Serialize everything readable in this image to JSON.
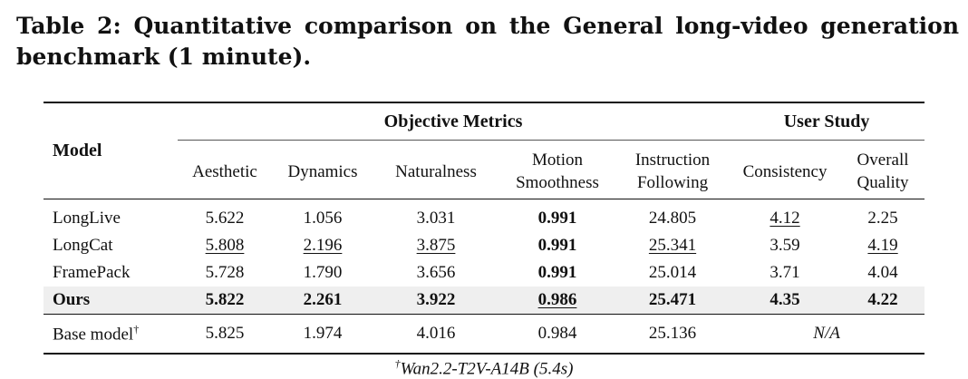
{
  "caption": "Table 2: Quantitative comparison on the General long-video generation benchmark (1 minute).",
  "table": {
    "model_header": "Model",
    "group_objective": "Objective Metrics",
    "group_user": "User Study",
    "columns": [
      [
        "Aesthetic"
      ],
      [
        "Dynamics"
      ],
      [
        "Naturalness"
      ],
      [
        "Motion",
        "Smoothness"
      ],
      [
        "Instruction",
        "Following"
      ],
      [
        "Consistency"
      ],
      [
        "Overall",
        "Quality"
      ]
    ],
    "rows": [
      {
        "model": "LongLive",
        "values": [
          "5.622",
          "1.056",
          "3.031",
          "0.991",
          "24.805",
          "4.12",
          "2.25"
        ],
        "style": [
          "",
          "",
          "",
          "b",
          "",
          "u",
          ""
        ]
      },
      {
        "model": "LongCat",
        "values": [
          "5.808",
          "2.196",
          "3.875",
          "0.991",
          "25.341",
          "3.59",
          "4.19"
        ],
        "style": [
          "u",
          "u",
          "u",
          "b",
          "u",
          "",
          "u"
        ]
      },
      {
        "model": "FramePack",
        "values": [
          "5.728",
          "1.790",
          "3.656",
          "0.991",
          "25.014",
          "3.71",
          "4.04"
        ],
        "style": [
          "",
          "",
          "",
          "b",
          "",
          "",
          ""
        ]
      },
      {
        "model": "Ours",
        "values": [
          "5.822",
          "2.261",
          "3.922",
          "0.986",
          "25.471",
          "4.35",
          "4.22"
        ],
        "style": [
          "b",
          "b",
          "b",
          "u",
          "b",
          "b",
          "b"
        ]
      }
    ],
    "base": {
      "model": "Base model",
      "dagger": "†",
      "values": [
        "5.825",
        "1.974",
        "4.016",
        "0.984",
        "25.136"
      ],
      "user_study": "N/A"
    }
  },
  "footnote": {
    "dagger": "†",
    "text": "Wan2.2-T2V-A14B (5.4s)"
  }
}
